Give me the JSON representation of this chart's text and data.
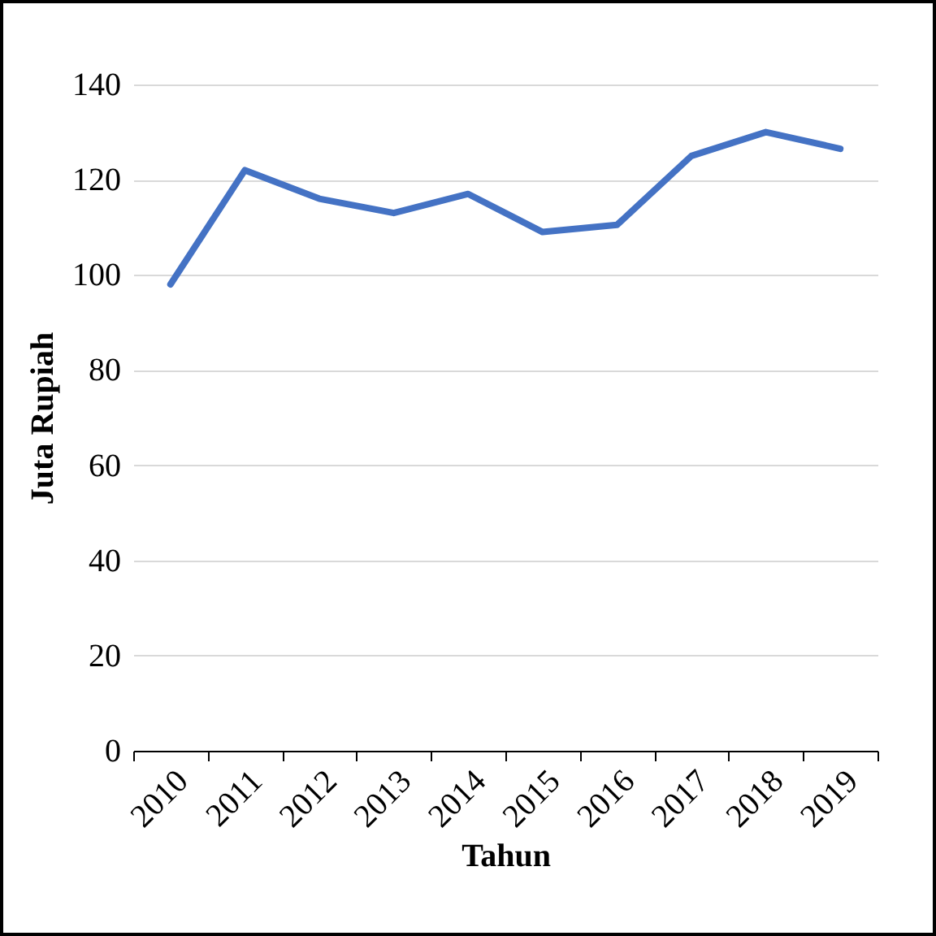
{
  "chart_data": {
    "type": "line",
    "xlabel": "Tahun",
    "ylabel": "Juta Rupiah",
    "categories": [
      "2010",
      "2011",
      "2012",
      "2013",
      "2014",
      "2015",
      "2016",
      "2017",
      "2018",
      "2019"
    ],
    "series": [
      {
        "color": "#4472c4",
        "values": [
          98,
          122,
          116,
          113,
          117,
          109,
          110.5,
          125,
          130,
          126.5
        ]
      }
    ],
    "ylim": [
      0,
      140
    ],
    "yticks": [
      0,
      20,
      40,
      60,
      80,
      100,
      120,
      140
    ],
    "grid": "y",
    "legend": false,
    "marker": "none",
    "line_style": "solid"
  }
}
